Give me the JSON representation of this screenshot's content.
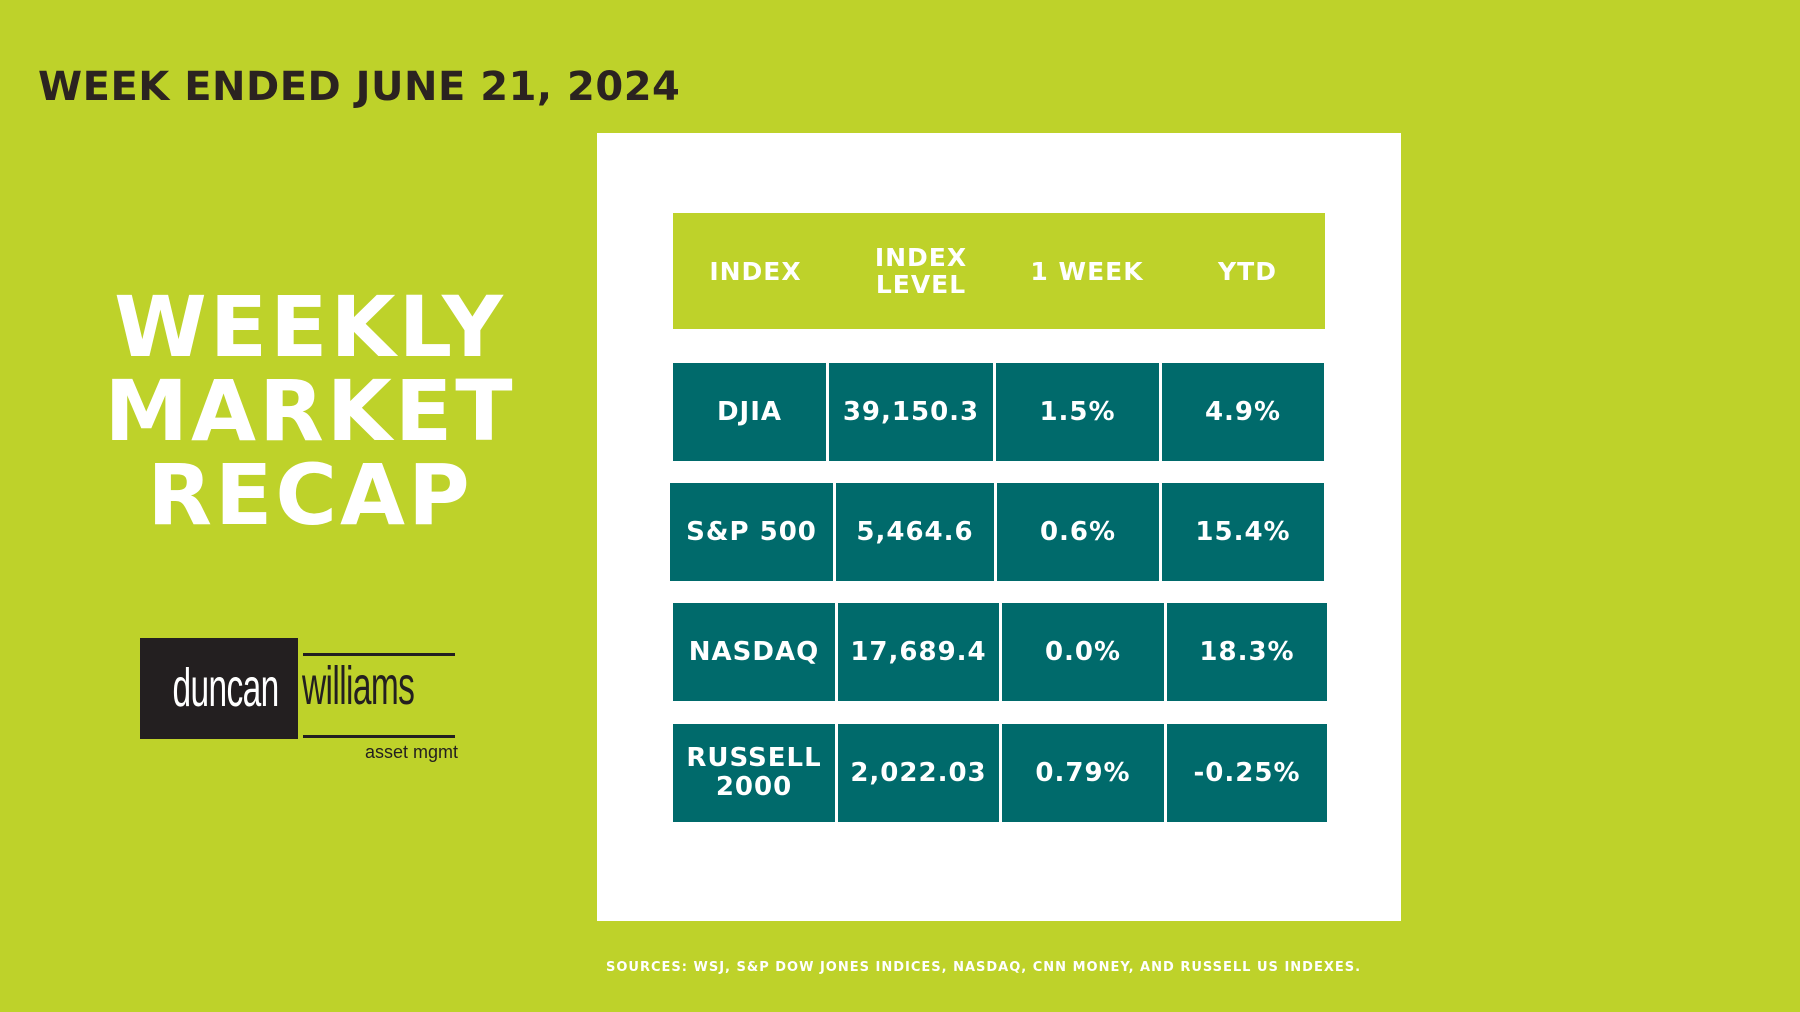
{
  "header": {
    "week_ended": "WEEK ENDED JUNE 21, 2024"
  },
  "title": {
    "line1": "WEEKLY",
    "line2": "MARKET",
    "line3": "RECAP"
  },
  "logo": {
    "word1": "duncan",
    "word2": "williams",
    "tagline": "asset mgmt"
  },
  "table": {
    "headers": {
      "index": "INDEX",
      "level_line1": "INDEX",
      "level_line2": "LEVEL",
      "week": "1 WEEK",
      "ytd": "YTD"
    },
    "rows": [
      {
        "index": "DJIA",
        "index_line2": "",
        "level": "39,150.3",
        "week": "1.5%",
        "ytd": "4.9%"
      },
      {
        "index": "S&P 500",
        "index_line2": "",
        "level": "5,464.6",
        "week": "0.6%",
        "ytd": "15.4%"
      },
      {
        "index": "NASDAQ",
        "index_line2": "",
        "level": "17,689.4",
        "week": "0.0%",
        "ytd": "18.3%"
      },
      {
        "index": "RUSSELL",
        "index_line2": "2000",
        "level": "2,022.03",
        "week": "0.79%",
        "ytd": "-0.25%"
      }
    ]
  },
  "footer": {
    "sources": "SOURCES: WSJ, S&P DOW JONES INDICES, NASDAQ, CNN  MONEY, AND  RUSSELL US INDEXES."
  },
  "colors": {
    "background": "#bed22a",
    "cell": "#006a6b",
    "panel": "#ffffff",
    "dark_text": "#2b2320"
  }
}
